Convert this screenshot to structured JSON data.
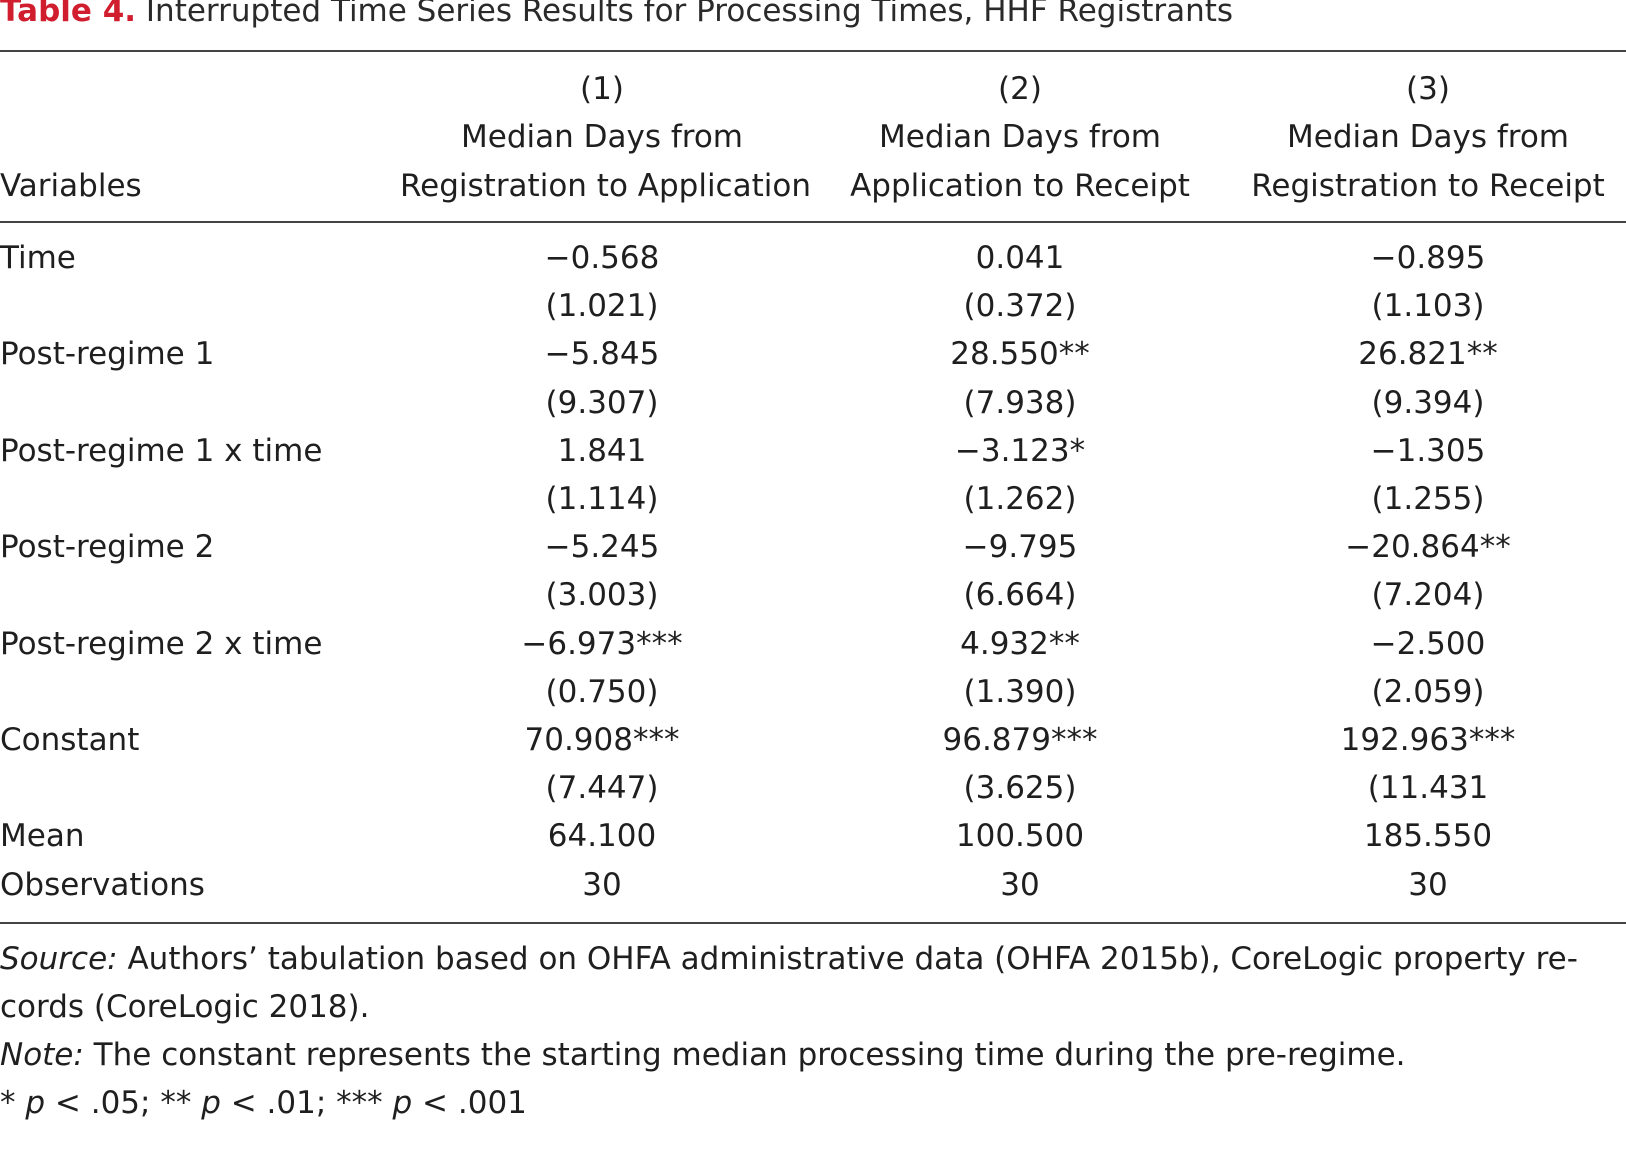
{
  "title": {
    "label": "Table 4.",
    "text": " Interrupted Time Series Results for Processing Times, HHF Registrants"
  },
  "header": {
    "variables": "Variables",
    "columns": [
      {
        "number": "(1)",
        "line1": "Median Days from",
        "line2": "Registration to Application"
      },
      {
        "number": "(2)",
        "line1": "Median Days from",
        "line2": "Application to Receipt"
      },
      {
        "number": "(3)",
        "line1": "Median Days from",
        "line2": "Registration to Receipt"
      }
    ]
  },
  "rows": [
    {
      "label": "Time",
      "values": [
        "−0.568",
        "0.041",
        "−0.895"
      ]
    },
    {
      "label": "",
      "values": [
        " (1.021)",
        "(0.372)",
        " (1.103)"
      ]
    },
    {
      "label": "Post-regime 1",
      "values": [
        "−5.845",
        "28.550**",
        "26.821**"
      ]
    },
    {
      "label": "",
      "values": [
        " (9.307)",
        "(7.938)",
        " (9.394)"
      ]
    },
    {
      "label": "Post-regime 1 x time",
      "values": [
        "1.841",
        "−3.123*",
        "−1.305"
      ]
    },
    {
      "label": "",
      "values": [
        " (1.114)",
        "(1.262)",
        " (1.255)"
      ]
    },
    {
      "label": "Post-regime 2",
      "values": [
        "−5.245",
        "−9.795",
        "−20.864**"
      ]
    },
    {
      "label": "",
      "values": [
        " (3.003)",
        "(6.664)",
        " (7.204)"
      ]
    },
    {
      "label": "Post-regime 2 x time",
      "values": [
        "−6.973***",
        "4.932**",
        "−2.500"
      ]
    },
    {
      "label": "",
      "values": [
        " (0.750)",
        "(1.390)",
        " (2.059)"
      ]
    },
    {
      "label": "Constant",
      "values": [
        "70.908***",
        "96.879***",
        "192.963***"
      ]
    },
    {
      "label": "",
      "values": [
        " (7.447)",
        "(3.625)",
        "(11.431"
      ]
    },
    {
      "label": "Mean",
      "values": [
        "64.100",
        "100.500",
        "185.550"
      ]
    },
    {
      "label": "Observations",
      "values": [
        "30",
        "30",
        "30"
      ]
    }
  ],
  "footer": {
    "source_label": "Source:",
    "source_text": " Authors’ tabulation based on OHFA administrative data (OHFA 2015b), CoreLogic property re-",
    "source_text_2": "cords (CoreLogic 2018).",
    "note_label": "Note:",
    "note_text": " The constant represents the starting median processing time during the pre-regime.",
    "sig_1_star": "* ",
    "sig_1_p": "p",
    "sig_1_rest": " < .05; ** ",
    "sig_2_p": "p",
    "sig_2_rest": " < .01; *** ",
    "sig_3_p": "p",
    "sig_3_rest": " < .001"
  }
}
